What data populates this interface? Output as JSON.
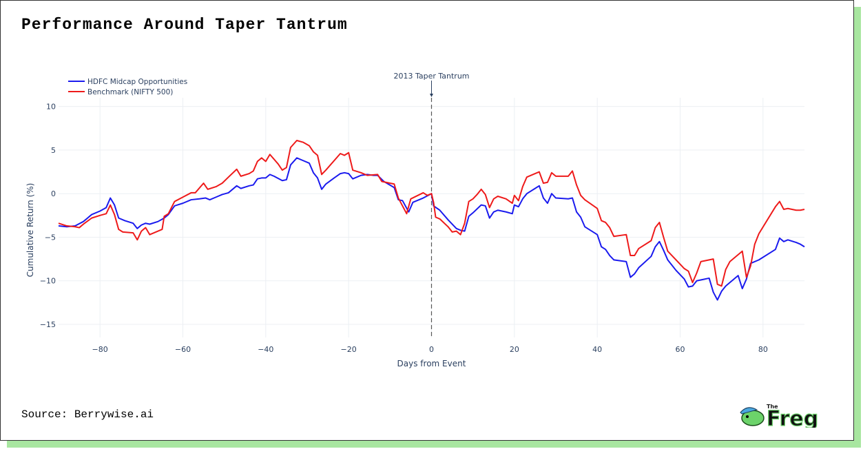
{
  "chart_data": {
    "type": "line",
    "title": "Performance Around Taper Tantrum",
    "x_label": "Days from Event",
    "y_label": "Cumulative Return (%)",
    "xlim": [
      -90,
      90
    ],
    "ylim": [
      -16.5,
      11
    ],
    "xticks": [
      {
        "value": -80,
        "label": "−80"
      },
      {
        "value": -60,
        "label": "−60"
      },
      {
        "value": -40,
        "label": "−40"
      },
      {
        "value": -20,
        "label": "−20"
      },
      0,
      20,
      40,
      60,
      80
    ],
    "yticks": [
      {
        "value": -15,
        "label": "−15"
      },
      {
        "value": -10,
        "label": "−10"
      },
      {
        "value": -5,
        "label": "−5"
      },
      0,
      5,
      10
    ],
    "grid": true,
    "legend": "top-left",
    "annotations": [
      {
        "x": 0,
        "text": "2013 Taper Tantrum"
      }
    ],
    "series": [
      {
        "name": "HDFC Midcap Opportunities",
        "color": "#1a1aee",
        "x": [
          -90,
          -88,
          -86,
          -84,
          -82,
          -80,
          -78.5,
          -77.5,
          -76.5,
          -75.5,
          -74,
          -72,
          -71,
          -70,
          -69,
          -68,
          -66,
          -64.5,
          -63.5,
          -62,
          -60,
          -58,
          -56,
          -54.5,
          -53.5,
          -52,
          -50.5,
          -49,
          -47,
          -46,
          -44,
          -43,
          -42,
          -41,
          -40,
          -39,
          -38,
          -36,
          -35,
          -34,
          -32.5,
          -31,
          -29.5,
          -28.5,
          -27.5,
          -26.5,
          -25.5,
          -23.5,
          -22,
          -21,
          -20,
          -19,
          -17,
          -15.5,
          -14,
          -13,
          -11.5,
          -9,
          -8,
          -7,
          -5.5,
          -4.5,
          -2,
          0,
          0.5,
          2,
          4,
          6,
          7,
          8,
          9,
          10,
          12,
          13,
          14,
          15,
          16,
          18,
          19.5,
          20,
          21,
          22,
          23,
          25,
          26,
          27,
          28,
          29,
          30,
          33,
          34,
          35,
          36,
          37,
          40,
          41,
          42,
          43,
          44,
          47,
          48,
          49,
          50,
          53,
          54,
          55,
          56,
          57,
          59,
          61,
          62,
          63,
          64,
          67,
          68,
          69,
          70,
          71,
          72,
          74,
          75,
          76,
          77,
          79,
          83,
          84,
          85,
          86,
          88,
          89,
          90
        ],
        "values": [
          -3.7,
          -3.8,
          -3.7,
          -3.2,
          -2.4,
          -2.0,
          -1.6,
          -0.5,
          -1.3,
          -2.8,
          -3.1,
          -3.4,
          -4.0,
          -3.6,
          -3.4,
          -3.5,
          -3.2,
          -2.8,
          -2.4,
          -1.4,
          -1.1,
          -0.7,
          -0.6,
          -0.5,
          -0.7,
          -0.4,
          -0.1,
          0.1,
          0.9,
          0.6,
          0.9,
          1.0,
          1.7,
          1.8,
          1.8,
          2.2,
          2.0,
          1.5,
          1.6,
          3.3,
          4.1,
          3.8,
          3.5,
          2.4,
          1.8,
          0.5,
          1.1,
          1.8,
          2.3,
          2.4,
          2.3,
          1.7,
          2.1,
          2.2,
          2.1,
          2.1,
          1.4,
          0.7,
          -0.7,
          -0.8,
          -2.1,
          -1.0,
          -0.5,
          0.0,
          -1.4,
          -1.9,
          -3.0,
          -4.0,
          -4.2,
          -4.3,
          -2.6,
          -2.2,
          -1.3,
          -1.4,
          -2.8,
          -2.1,
          -1.9,
          -2.1,
          -2.3,
          -1.3,
          -1.5,
          -0.6,
          0.0,
          0.6,
          0.9,
          -0.5,
          -1.1,
          0.0,
          -0.5,
          -0.6,
          -0.5,
          -2.1,
          -2.7,
          -3.8,
          -4.7,
          -6.1,
          -6.4,
          -7.1,
          -7.6,
          -7.8,
          -9.6,
          -9.2,
          -8.5,
          -7.2,
          -6.1,
          -5.5,
          -6.5,
          -7.6,
          -8.8,
          -9.8,
          -10.7,
          -10.6,
          -10.0,
          -9.7,
          -11.3,
          -12.2,
          -11.2,
          -10.6,
          -10.2,
          -9.4,
          -10.9,
          -9.8,
          -8.0,
          -7.6,
          -6.4,
          -5.1,
          -5.5,
          -5.3,
          -5.6,
          -5.8,
          -6.1
        ]
      },
      {
        "name": "Benchmark (NIFTY 500)",
        "color": "#ee1a1a",
        "x": [
          -90,
          -88,
          -86,
          -85,
          -84,
          -82,
          -80,
          -78.5,
          -77.5,
          -76.5,
          -75.5,
          -74.5,
          -72,
          -71,
          -70,
          -69,
          -68,
          -65,
          -64.5,
          -63.5,
          -62,
          -60,
          -58,
          -57,
          -55,
          -54,
          -52,
          -50.5,
          -49,
          -47,
          -46,
          -44,
          -43,
          -42,
          -41,
          -40,
          -39,
          -37,
          -36,
          -35,
          -34,
          -32.5,
          -31,
          -29.5,
          -28.5,
          -27.5,
          -26.5,
          -25.5,
          -22,
          -21,
          -20,
          -19,
          -17,
          -15.5,
          -13,
          -12,
          -9,
          -8,
          -6,
          -5,
          -2,
          -1,
          0,
          0.5,
          1,
          2,
          4,
          5,
          6,
          7,
          8,
          9,
          10,
          11,
          12,
          13,
          14,
          15,
          16,
          18,
          19.5,
          20,
          21,
          22,
          23,
          25,
          26,
          27,
          28,
          29,
          30,
          33,
          34,
          35,
          36,
          37,
          40,
          41,
          42,
          43,
          44,
          47,
          48,
          49,
          50,
          53,
          54,
          55,
          56,
          57,
          59,
          61,
          62,
          63,
          64,
          65,
          67,
          68,
          69,
          70,
          71,
          72,
          75,
          76,
          77,
          78,
          79,
          83,
          84,
          85,
          86,
          88,
          89,
          90
        ],
        "values": [
          -3.4,
          -3.7,
          -3.8,
          -3.9,
          -3.5,
          -2.8,
          -2.5,
          -2.3,
          -1.3,
          -2.4,
          -4.1,
          -4.4,
          -4.5,
          -5.3,
          -4.3,
          -3.9,
          -4.7,
          -4.1,
          -2.6,
          -2.3,
          -0.9,
          -0.4,
          0.1,
          0.1,
          1.2,
          0.5,
          0.8,
          1.2,
          1.9,
          2.8,
          2.0,
          2.3,
          2.6,
          3.7,
          4.1,
          3.7,
          4.5,
          3.4,
          2.7,
          3.0,
          5.3,
          6.1,
          5.9,
          5.5,
          4.8,
          4.4,
          2.2,
          2.7,
          4.6,
          4.4,
          4.7,
          2.7,
          2.4,
          2.1,
          2.2,
          1.4,
          1.1,
          -0.5,
          -2.3,
          -0.6,
          0.1,
          -0.2,
          0.0,
          -1.0,
          -2.7,
          -2.9,
          -3.8,
          -4.4,
          -4.3,
          -4.7,
          -3.4,
          -0.9,
          -0.6,
          -0.1,
          0.5,
          -0.1,
          -1.6,
          -0.6,
          -0.3,
          -0.6,
          -1.1,
          -0.2,
          -0.8,
          0.8,
          1.9,
          2.3,
          2.5,
          1.2,
          1.3,
          2.4,
          2.0,
          2.0,
          2.6,
          1.0,
          -0.2,
          -0.7,
          -1.7,
          -3.1,
          -3.3,
          -3.9,
          -4.9,
          -4.7,
          -7.1,
          -7.1,
          -6.3,
          -5.4,
          -3.9,
          -3.3,
          -5.0,
          -6.6,
          -7.6,
          -8.6,
          -8.9,
          -10.2,
          -9.1,
          -7.8,
          -7.6,
          -7.5,
          -10.4,
          -10.6,
          -8.7,
          -7.8,
          -6.6,
          -9.6,
          -8.3,
          -5.8,
          -4.6,
          -1.5,
          -0.9,
          -1.8,
          -1.7,
          -1.9,
          -1.9,
          -1.8
        ]
      }
    ]
  },
  "footer": {
    "source": "Source: Berrywise.ai",
    "logo": {
      "small": "The",
      "large": "Freg"
    }
  }
}
